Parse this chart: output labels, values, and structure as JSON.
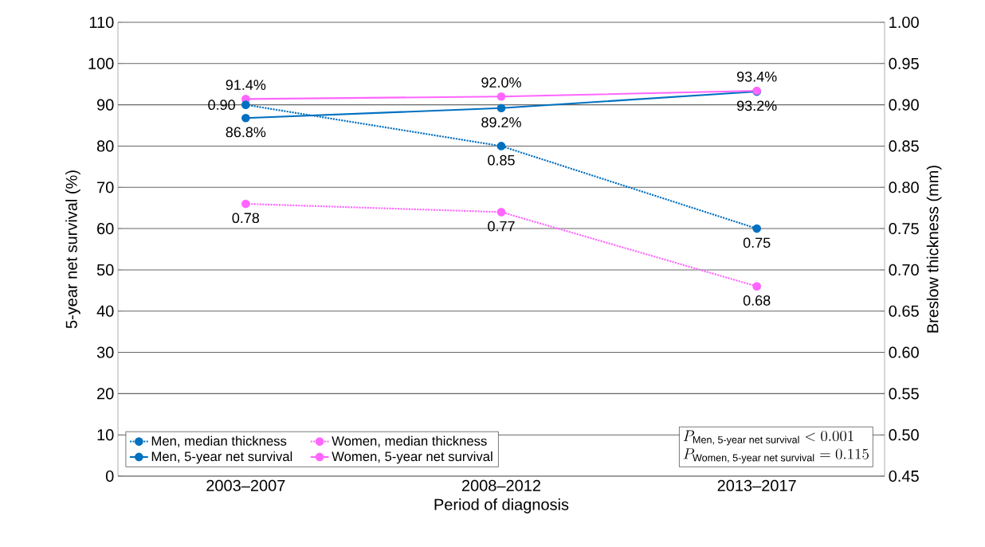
{
  "chart_data": {
    "type": "line",
    "xlabel": "Period of diagnosis",
    "ylabel": "5-year net survival (%)",
    "y2label": "Breslow thickness (mm)",
    "categories": [
      "2003–2007",
      "2008–2012",
      "2013–2017"
    ],
    "series": [
      {
        "name": "Men, median thickness",
        "color": "#0070c0",
        "values": [
          0.9,
          0.85,
          0.75
        ],
        "axis": "y2",
        "line_style": "dotted",
        "value_labels": [
          "0.90",
          "0.85",
          "0.75"
        ]
      },
      {
        "name": "Women, median thickness",
        "color": "#ff66ff",
        "values": [
          0.78,
          0.77,
          0.68
        ],
        "axis": "y2",
        "line_style": "dotted",
        "value_labels": [
          "0.78",
          "0.77",
          "0.68"
        ]
      },
      {
        "name": "Men, 5-year net survival",
        "color": "#0070c0",
        "values": [
          86.8,
          89.2,
          93.2
        ],
        "axis": "y",
        "line_style": "solid",
        "value_labels": [
          "86.8%",
          "89.2%",
          "93.2%"
        ]
      },
      {
        "name": "Women, 5-year net survival",
        "color": "#ff66ff",
        "values": [
          91.4,
          92.0,
          93.4
        ],
        "axis": "y",
        "line_style": "solid",
        "value_labels": [
          "91.4%",
          "92.0%",
          "93.4%"
        ]
      }
    ],
    "ylim": [
      0,
      110
    ],
    "yticks": [
      0,
      10,
      20,
      30,
      40,
      50,
      60,
      70,
      80,
      90,
      100,
      110
    ],
    "y2lim": [
      0.45,
      1.0
    ],
    "y2ticks": [
      {
        "value": 0.45,
        "label": "0.45"
      },
      {
        "value": 0.5,
        "label": "0.50"
      },
      {
        "value": 0.55,
        "label": "0.55"
      },
      {
        "value": 0.6,
        "label": "0.60"
      },
      {
        "value": 0.65,
        "label": "0.65"
      },
      {
        "value": 0.7,
        "label": "0.70"
      },
      {
        "value": 0.75,
        "label": "0.75"
      },
      {
        "value": 0.8,
        "label": "0.80"
      },
      {
        "value": 0.85,
        "label": "0.85"
      },
      {
        "value": 0.9,
        "label": "0.90"
      },
      {
        "value": 0.95,
        "label": "0.95"
      },
      {
        "value": 1.0,
        "label": "1.00"
      }
    ],
    "grid": "y",
    "legend": "bottom left",
    "marker": "circle",
    "annotations": [
      "P_{\\text{Men, 5-year net survival}} < 0.001",
      "P_{\\text{Women, 5-year net survival}} = 0.115"
    ]
  }
}
